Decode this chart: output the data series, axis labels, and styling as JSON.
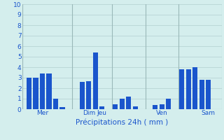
{
  "bars": [
    {
      "x": 1,
      "height": 3.0
    },
    {
      "x": 2,
      "height": 3.0
    },
    {
      "x": 3,
      "height": 3.4
    },
    {
      "x": 4,
      "height": 3.4
    },
    {
      "x": 5,
      "height": 1.0
    },
    {
      "x": 6,
      "height": 0.2
    },
    {
      "x": 9,
      "height": 2.6
    },
    {
      "x": 10,
      "height": 2.7
    },
    {
      "x": 11,
      "height": 5.4
    },
    {
      "x": 12,
      "height": 0.3
    },
    {
      "x": 14,
      "height": 0.5
    },
    {
      "x": 15,
      "height": 1.0
    },
    {
      "x": 16,
      "height": 1.2
    },
    {
      "x": 17,
      "height": 0.3
    },
    {
      "x": 20,
      "height": 0.4
    },
    {
      "x": 21,
      "height": 0.5
    },
    {
      "x": 22,
      "height": 1.0
    },
    {
      "x": 24,
      "height": 3.8
    },
    {
      "x": 25,
      "height": 3.8
    },
    {
      "x": 26,
      "height": 4.0
    },
    {
      "x": 27,
      "height": 2.8
    },
    {
      "x": 28,
      "height": 2.8
    }
  ],
  "day_labels": [
    {
      "x": 3,
      "label": "Mer"
    },
    {
      "x": 10,
      "label": "Dim"
    },
    {
      "x": 12,
      "label": "Jeu"
    },
    {
      "x": 21,
      "label": "Ven"
    },
    {
      "x": 28,
      "label": "Sam"
    }
  ],
  "day_lines_x": [
    0.0,
    7.5,
    13.5,
    18.5,
    23.5,
    30.0
  ],
  "xlabel": "Précipitations 24h ( mm )",
  "ylim": [
    0,
    10
  ],
  "yticks": [
    0,
    1,
    2,
    3,
    4,
    5,
    6,
    7,
    8,
    9,
    10
  ],
  "xlim": [
    0.0,
    30.0
  ],
  "bg_color": "#d4eeed",
  "bar_color": "#1a55cc",
  "grid_color": "#b8d4d4",
  "text_color": "#1a55cc",
  "bar_width": 0.75,
  "xlabel_fontsize": 7.5,
  "ytick_fontsize": 6.5,
  "xtick_fontsize": 6.5
}
